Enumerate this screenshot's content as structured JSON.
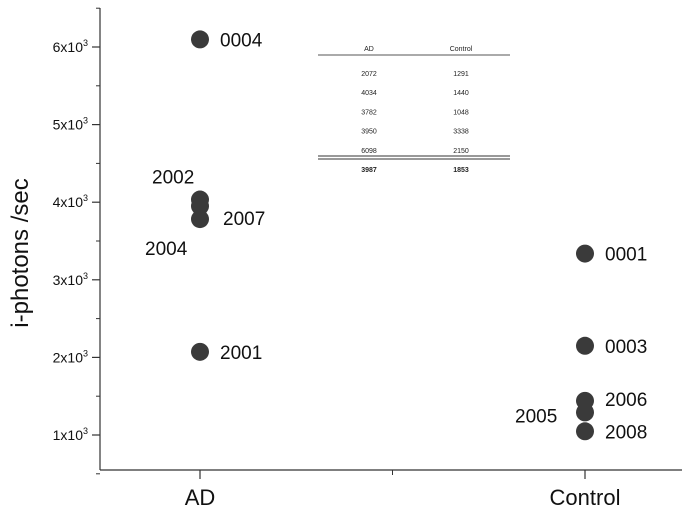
{
  "chart_data": {
    "type": "scatter",
    "categories": [
      "AD",
      "Control"
    ],
    "ylabel": "i-photons /sec",
    "ylim": [
      600,
      6500
    ],
    "y_ticks": [
      {
        "value": 1000,
        "base": "1x10",
        "exp": "3"
      },
      {
        "value": 2000,
        "base": "2x10",
        "exp": "3"
      },
      {
        "value": 3000,
        "base": "3x10",
        "exp": "3"
      },
      {
        "value": 4000,
        "base": "4x10",
        "exp": "3"
      },
      {
        "value": 5000,
        "base": "5x10",
        "exp": "3"
      },
      {
        "value": 6000,
        "base": "6x10",
        "exp": "3"
      }
    ],
    "points": [
      {
        "category": "AD",
        "y": 6098,
        "label": "0004",
        "label_side": "right"
      },
      {
        "category": "AD",
        "y": 4034,
        "label": "2002",
        "label_side": "above-left"
      },
      {
        "category": "AD",
        "y": 3950,
        "label": "2007",
        "label_side": "right-below"
      },
      {
        "category": "AD",
        "y": 3782,
        "label": "2004",
        "label_side": "below-left"
      },
      {
        "category": "AD",
        "y": 2072,
        "label": "2001",
        "label_side": "right"
      },
      {
        "category": "Control",
        "y": 3338,
        "label": "0001",
        "label_side": "right"
      },
      {
        "category": "Control",
        "y": 2150,
        "label": "0003",
        "label_side": "right"
      },
      {
        "category": "Control",
        "y": 1440,
        "label": "2006",
        "label_side": "right-above"
      },
      {
        "category": "Control",
        "y": 1291,
        "label": "2005",
        "label_side": "left"
      },
      {
        "category": "Control",
        "y": 1048,
        "label": "2008",
        "label_side": "right"
      }
    ],
    "inset_table": {
      "headers": [
        "AD",
        "Control"
      ],
      "rows": [
        [
          "2072",
          "1291"
        ],
        [
          "4034",
          "1440"
        ],
        [
          "3782",
          "1048"
        ],
        [
          "3950",
          "3338"
        ],
        [
          "6098",
          "2150"
        ]
      ],
      "summary": [
        "3987",
        "1853"
      ]
    },
    "colors": {
      "marker": "#3a3a3a",
      "axis": "#333333"
    }
  }
}
